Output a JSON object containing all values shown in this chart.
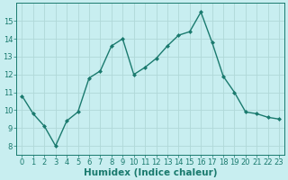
{
  "x": [
    0,
    1,
    2,
    3,
    4,
    5,
    6,
    7,
    8,
    9,
    10,
    11,
    12,
    13,
    14,
    15,
    16,
    17,
    18,
    19,
    20,
    21,
    22,
    23
  ],
  "y": [
    10.8,
    9.8,
    9.1,
    8.0,
    9.4,
    9.9,
    11.8,
    12.2,
    13.6,
    14.0,
    12.0,
    12.4,
    12.9,
    13.6,
    14.2,
    14.4,
    15.5,
    13.8,
    11.9,
    11.0,
    9.9,
    9.8,
    9.6,
    9.5
  ],
  "line_color": "#1a7a6e",
  "marker": "D",
  "marker_size": 2.0,
  "bg_color": "#c8eef0",
  "grid_color": "#b0d8d8",
  "xlabel": "Humidex (Indice chaleur)",
  "xlim": [
    -0.5,
    23.5
  ],
  "ylim": [
    7.5,
    16.0
  ],
  "yticks": [
    8,
    9,
    10,
    11,
    12,
    13,
    14,
    15
  ],
  "xticks": [
    0,
    1,
    2,
    3,
    4,
    5,
    6,
    7,
    8,
    9,
    10,
    11,
    12,
    13,
    14,
    15,
    16,
    17,
    18,
    19,
    20,
    21,
    22,
    23
  ],
  "tick_color": "#1a7a6e",
  "label_fontsize": 6,
  "xlabel_fontsize": 7.5,
  "linewidth": 1.0
}
